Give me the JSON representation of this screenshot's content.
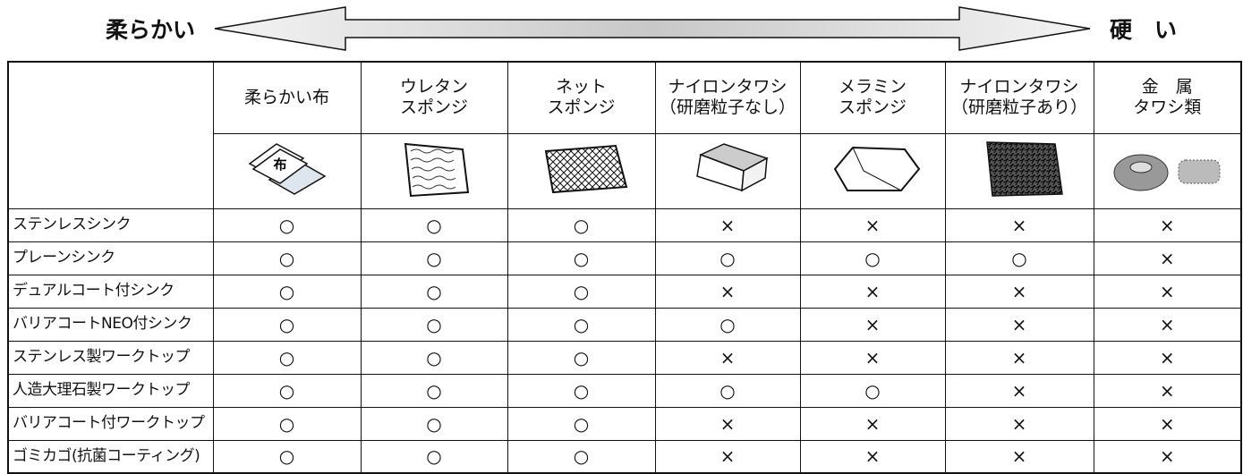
{
  "scale": {
    "soft": "柔らかい",
    "hard": "硬　い"
  },
  "table": {
    "columns": [
      [
        "柔らかい布"
      ],
      [
        "ウレタン",
        "スポンジ"
      ],
      [
        "ネット",
        "スポンジ"
      ],
      [
        "ナイロンタワシ",
        "（研磨粒子なし）"
      ],
      [
        "メラミン",
        "スポンジ"
      ],
      [
        "ナイロンタワシ",
        "（研磨粒子あり）"
      ],
      [
        "金　属",
        "タワシ類"
      ]
    ],
    "cloth_mark": "布",
    "rows": [
      {
        "label": "ステンレスシンク",
        "cells": [
          "○",
          "○",
          "○",
          "×",
          "×",
          "×",
          "×"
        ]
      },
      {
        "label": "プレーンシンク",
        "cells": [
          "○",
          "○",
          "○",
          "○",
          "○",
          "○",
          "×"
        ]
      },
      {
        "label": "デュアルコート付シンク",
        "cells": [
          "○",
          "○",
          "○",
          "×",
          "×",
          "×",
          "×"
        ]
      },
      {
        "label": "バリアコートNEO付シンク",
        "cells": [
          "○",
          "○",
          "○",
          "○",
          "×",
          "×",
          "×"
        ]
      },
      {
        "label": "ステンレス製ワークトップ",
        "cells": [
          "○",
          "○",
          "○",
          "×",
          "×",
          "×",
          "×"
        ]
      },
      {
        "label": "人造大理石製ワークトップ",
        "cells": [
          "○",
          "○",
          "○",
          "○",
          "○",
          "×",
          "×"
        ]
      },
      {
        "label": "バリアコート付ワークトップ",
        "cells": [
          "○",
          "○",
          "○",
          "×",
          "×",
          "×",
          "×"
        ]
      },
      {
        "label": "ゴミカゴ(抗菌コーティング)",
        "cells": [
          "○",
          "○",
          "○",
          "×",
          "×",
          "×",
          "×"
        ]
      }
    ]
  }
}
